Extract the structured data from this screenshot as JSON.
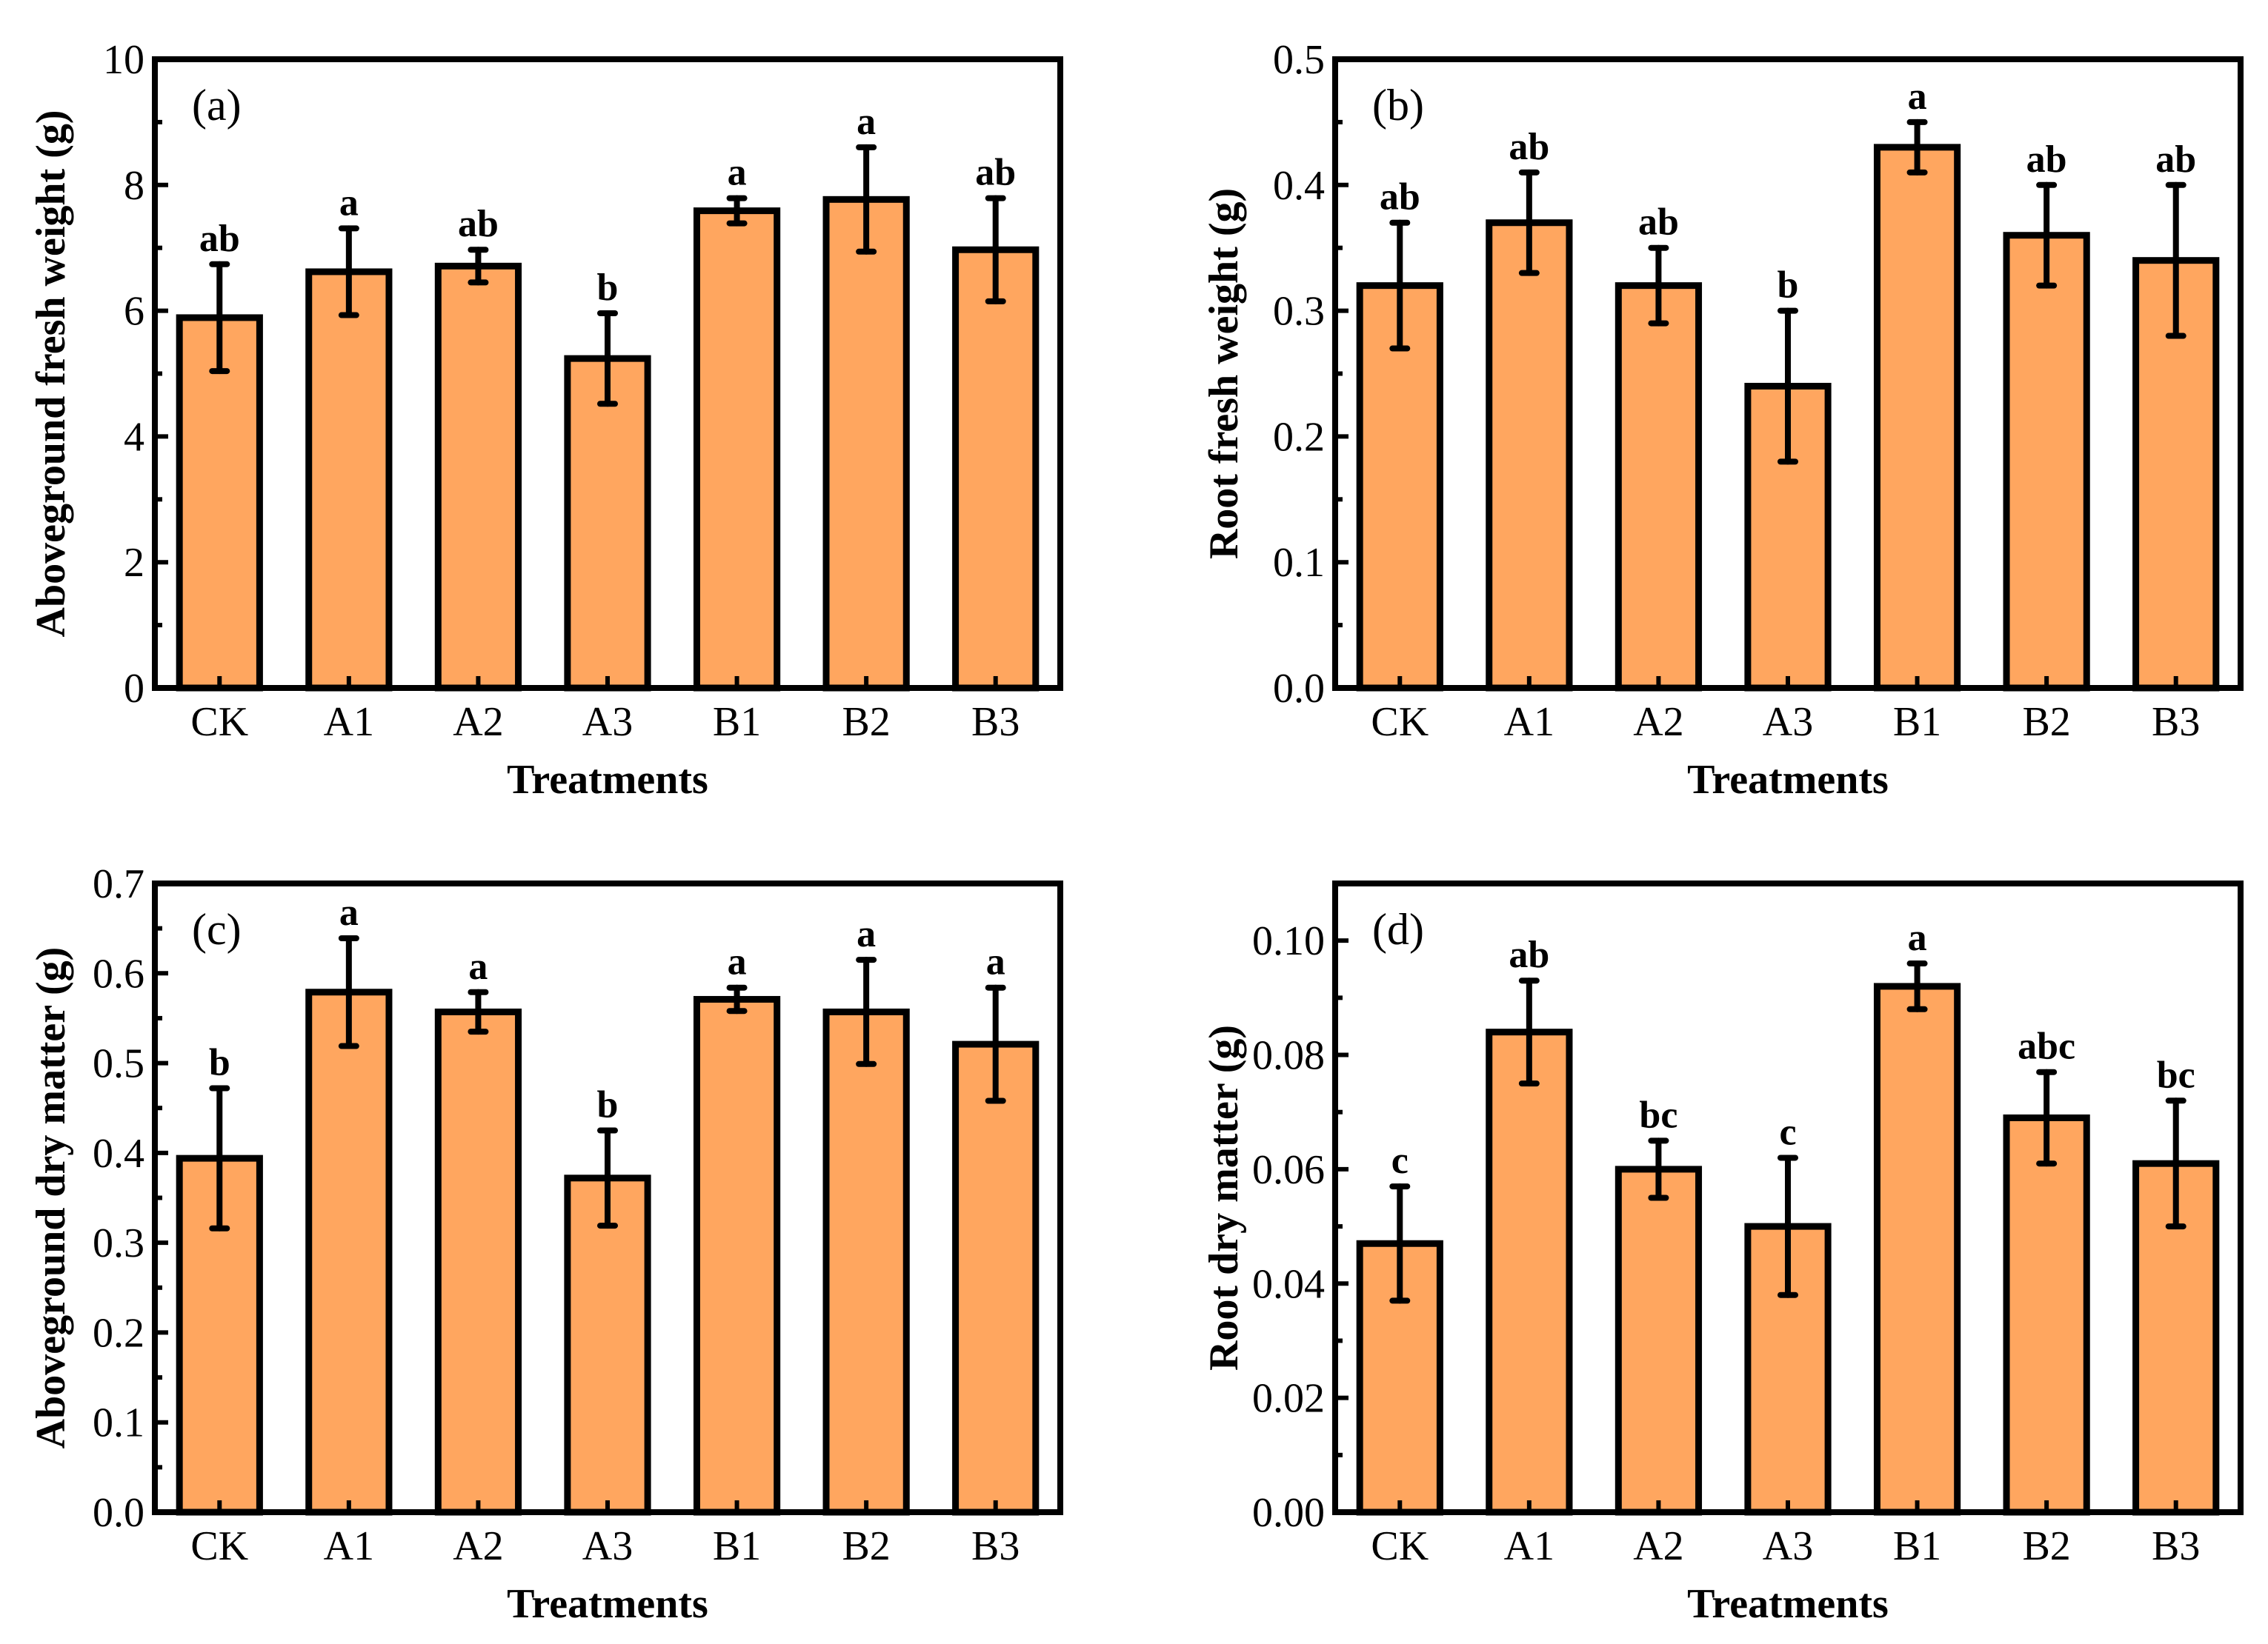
{
  "chart_data": [
    {
      "type": "bar",
      "panel_label": "(a)",
      "categories": [
        "CK",
        "A1",
        "A2",
        "A3",
        "B1",
        "B2",
        "B3"
      ],
      "values": [
        5.89,
        6.62,
        6.71,
        5.24,
        7.59,
        7.77,
        6.97
      ],
      "errors": [
        0.85,
        0.69,
        0.26,
        0.72,
        0.2,
        0.83,
        0.82
      ],
      "letters": [
        "ab",
        "a",
        "ab",
        "b",
        "a",
        "a",
        "ab"
      ],
      "xlabel": "Treatments",
      "ylabel": "Aboveground fresh weight (g)",
      "ylim": [
        0,
        10
      ],
      "yticks": [
        "0",
        "2",
        "4",
        "6",
        "8",
        "10"
      ],
      "ytick_values": [
        0,
        2,
        4,
        6,
        8,
        10
      ]
    },
    {
      "type": "bar",
      "panel_label": "(b)",
      "categories": [
        "CK",
        "A1",
        "A2",
        "A3",
        "B1",
        "B2",
        "B3"
      ],
      "values": [
        0.32,
        0.37,
        0.32,
        0.24,
        0.43,
        0.36,
        0.34
      ],
      "errors": [
        0.05,
        0.04,
        0.03,
        0.06,
        0.02,
        0.04,
        0.06
      ],
      "letters": [
        "ab",
        "ab",
        "ab",
        "b",
        "a",
        "ab",
        "ab"
      ],
      "xlabel": "Treatments",
      "ylabel": "Root fresh weight (g)",
      "ylim": [
        0,
        0.5
      ],
      "yticks": [
        "0.0",
        "0.1",
        "0.2",
        "0.3",
        "0.4",
        "0.5"
      ],
      "ytick_values": [
        0,
        0.1,
        0.2,
        0.3,
        0.4,
        0.5
      ]
    },
    {
      "type": "bar",
      "panel_label": "(c)",
      "categories": [
        "CK",
        "A1",
        "A2",
        "A3",
        "B1",
        "B2",
        "B3"
      ],
      "values": [
        0.394,
        0.579,
        0.557,
        0.372,
        0.571,
        0.557,
        0.521
      ],
      "errors": [
        0.078,
        0.06,
        0.022,
        0.053,
        0.013,
        0.058,
        0.063
      ],
      "letters": [
        "b",
        "a",
        "a",
        "b",
        "a",
        "a",
        "a"
      ],
      "xlabel": "Treatments",
      "ylabel": "Aboveground dry matter (g)",
      "ylim": [
        0,
        0.7
      ],
      "yticks": [
        "0.0",
        "0.1",
        "0.2",
        "0.3",
        "0.4",
        "0.5",
        "0.6",
        "0.7"
      ],
      "ytick_values": [
        0,
        0.1,
        0.2,
        0.3,
        0.4,
        0.5,
        0.6,
        0.7
      ]
    },
    {
      "type": "bar",
      "panel_label": "(d)",
      "categories": [
        "CK",
        "A1",
        "A2",
        "A3",
        "B1",
        "B2",
        "B3"
      ],
      "values": [
        0.047,
        0.084,
        0.06,
        0.05,
        0.092,
        0.069,
        0.061
      ],
      "errors": [
        0.01,
        0.009,
        0.005,
        0.012,
        0.004,
        0.008,
        0.011
      ],
      "letters": [
        "c",
        "ab",
        "bc",
        "c",
        "a",
        "abc",
        "bc"
      ],
      "xlabel": "Treatments",
      "ylabel": "Root dry matter (g)",
      "ylim": [
        0,
        0.11
      ],
      "yticks": [
        "0.00",
        "0.02",
        "0.04",
        "0.06",
        "0.08",
        "0.10"
      ],
      "ytick_values": [
        0,
        0.02,
        0.04,
        0.06,
        0.08,
        0.1
      ]
    }
  ],
  "colors": {
    "bar": "#FFA65F",
    "stroke": "#000000"
  }
}
